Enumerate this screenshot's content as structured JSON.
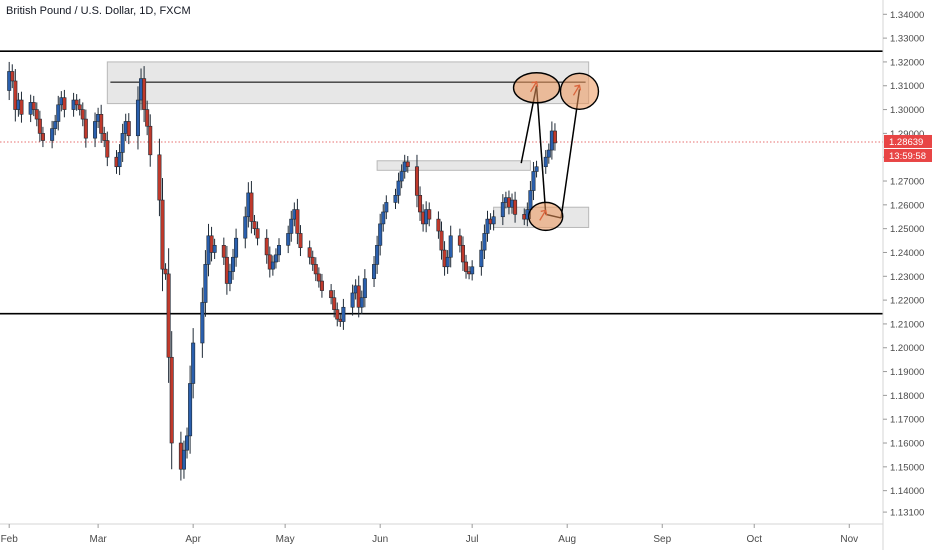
{
  "chart_title": "British Pound / U.S. Dollar, 1D, FXCM",
  "chart_data": {
    "type": "candlestick",
    "title": "British Pound / U.S. Dollar, 1D, FXCM",
    "ylim": [
      1.126,
      1.346
    ],
    "y_ticks": [
      "1.34000",
      "1.33000",
      "1.32000",
      "1.31000",
      "1.30000",
      "1.29000",
      "1.28000",
      "1.27000",
      "1.26000",
      "1.25000",
      "1.24000",
      "1.23000",
      "1.22000",
      "1.21000",
      "1.20000",
      "1.19000",
      "1.18000",
      "1.17000",
      "1.16000",
      "1.15000",
      "1.14000",
      "1.13100"
    ],
    "x_ticks": [
      "Feb",
      "Mar",
      "Apr",
      "May",
      "Jun",
      "Jul",
      "Aug",
      "Sep",
      "Oct",
      "Nov"
    ],
    "x_tick_days": [
      0,
      29,
      60,
      90,
      121,
      151,
      182,
      213,
      243,
      274
    ],
    "x_range_days": [
      -3,
      285
    ],
    "current_price": "1.28639",
    "countdown": "13:59:58",
    "bull_color": "#2a5fad",
    "bear_color": "#c0392b",
    "closes": [
      1.316,
      1.312,
      1.3,
      1.304,
      1.298,
      1.303,
      1.3,
      1.296,
      1.29,
      1.287,
      1.292,
      1.295,
      1.302,
      1.305,
      1.3,
      1.304,
      1.302,
      1.3,
      1.296,
      1.288,
      1.295,
      1.298,
      1.29,
      1.287,
      1.28,
      1.276,
      1.282,
      1.29,
      1.295,
      1.289,
      1.304,
      1.313,
      1.3,
      1.293,
      1.281,
      1.262,
      1.233,
      1.231,
      1.196,
      1.16,
      1.149,
      1.157,
      1.163,
      1.185,
      1.202,
      1.219,
      1.235,
      1.247,
      1.24,
      1.243,
      1.238,
      1.227,
      1.232,
      1.238,
      1.246,
      1.255,
      1.265,
      1.253,
      1.25,
      1.246,
      1.239,
      1.233,
      1.236,
      1.239,
      1.243,
      1.248,
      1.254,
      1.258,
      1.248,
      1.242,
      1.238,
      1.235,
      1.231,
      1.228,
      1.224,
      1.221,
      1.216,
      1.212,
      1.211,
      1.217,
      1.223,
      1.226,
      1.217,
      1.221,
      1.229,
      1.235,
      1.243,
      1.252,
      1.257,
      1.261,
      1.264,
      1.27,
      1.274,
      1.278,
      1.276,
      1.264,
      1.257,
      1.252,
      1.258,
      1.254,
      1.249,
      1.241,
      1.234,
      1.238,
      1.247,
      1.243,
      1.236,
      1.232,
      1.231,
      1.234,
      1.241,
      1.248,
      1.254,
      1.252,
      1.255,
      1.261,
      1.263,
      1.259,
      1.262,
      1.256,
      1.254,
      1.258,
      1.266,
      1.274,
      1.276,
      1.28,
      1.283,
      1.291,
      1.286
    ],
    "levels": [
      1.3245,
      1.2143
    ],
    "resistance_line": 1.3115,
    "zones": [
      {
        "day_from": 32,
        "day_to": 189,
        "high": 1.32,
        "low": 1.3025
      },
      {
        "day_from": 120,
        "day_to": 170,
        "high": 1.2785,
        "low": 1.2745
      },
      {
        "day_from": 158,
        "day_to": 189,
        "high": 1.259,
        "low": 1.2505
      }
    ],
    "path": [
      [
        167,
        1.2775
      ],
      [
        172,
        1.31
      ],
      [
        175,
        1.256
      ],
      [
        180,
        1.2545
      ],
      [
        186,
        1.3085
      ]
    ]
  }
}
